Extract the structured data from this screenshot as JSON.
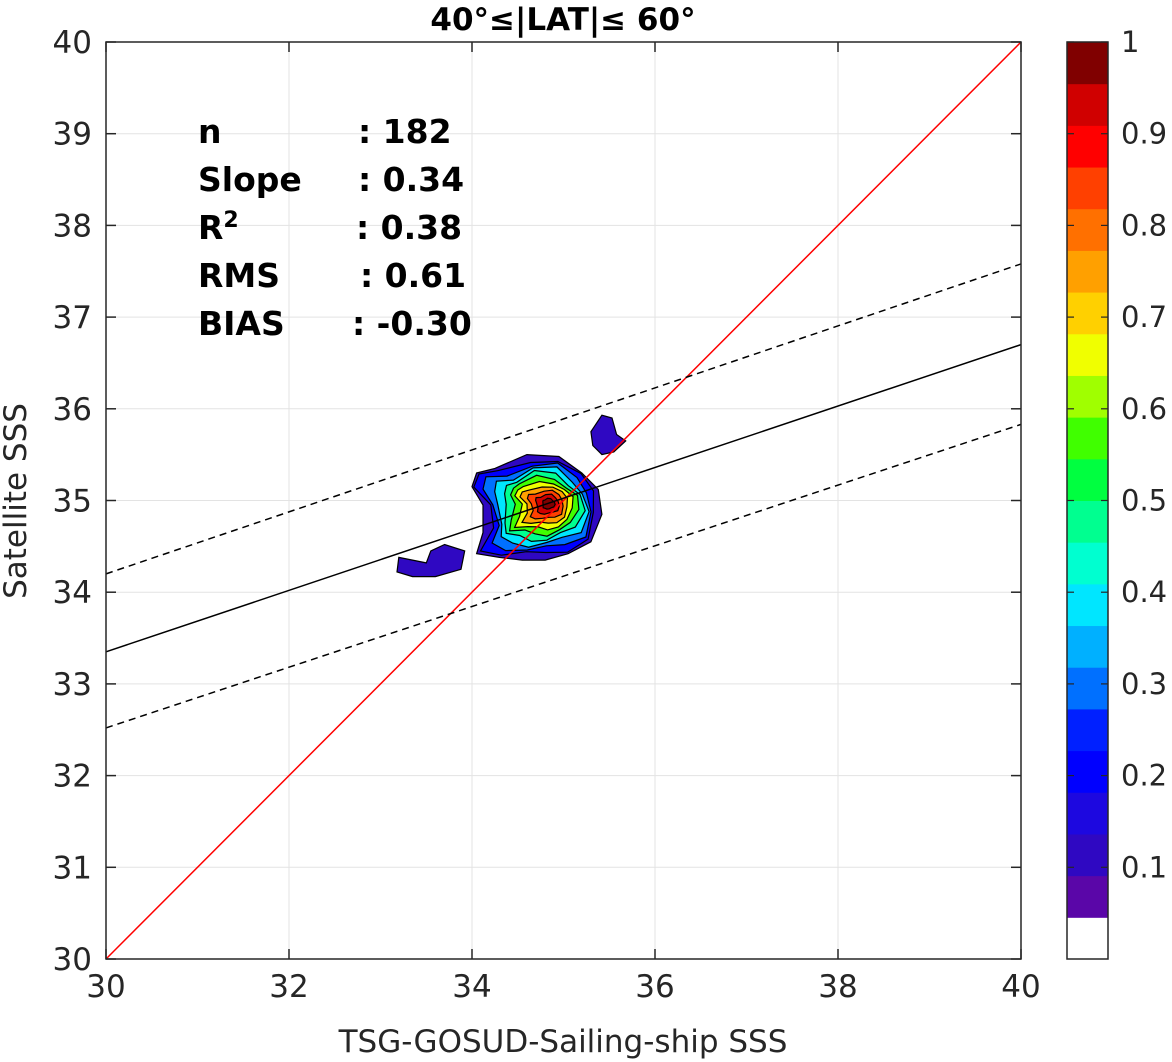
{
  "chart_data": {
    "type": "contour",
    "title": "40°≤|LAT|≤ 60°",
    "xlabel": "TSG-GOSUD-Sailing-ship SSS",
    "ylabel": "Satellite SSS",
    "xlim": [
      30,
      40
    ],
    "ylim": [
      30,
      40
    ],
    "xticks": [
      "30",
      "32",
      "34",
      "36",
      "38",
      "40"
    ],
    "yticks": [
      "30",
      "31",
      "32",
      "33",
      "34",
      "35",
      "36",
      "37",
      "38",
      "39",
      "40"
    ],
    "grid": true,
    "stats": [
      {
        "name": "n",
        "value": ": 182"
      },
      {
        "name": "Slope",
        "value": ": 0.34"
      },
      {
        "name": "R",
        "sup": "2",
        "value": ": 0.38"
      },
      {
        "name": "RMS",
        "value": ": 0.61"
      },
      {
        "name": "BIAS",
        "value": ": -0.30"
      }
    ],
    "lines": {
      "identity": {
        "x": [
          30,
          40
        ],
        "y": [
          30,
          40
        ],
        "color": "#ff0000"
      },
      "regression": {
        "x": [
          30,
          40
        ],
        "y": [
          33.35,
          36.7
        ],
        "color": "#000000"
      },
      "upper_bound": {
        "x": [
          30,
          40
        ],
        "y": [
          34.2,
          37.58
        ],
        "color": "#000000",
        "dash": true
      },
      "lower_bound": {
        "x": [
          30,
          40
        ],
        "y": [
          32.52,
          35.83
        ],
        "color": "#000000",
        "dash": true
      }
    },
    "density_peak": {
      "x": 34.85,
      "y": 34.97
    },
    "contour_levels": [
      0.05,
      0.1,
      0.2,
      0.3,
      0.4,
      0.5,
      0.6,
      0.7,
      0.8,
      0.9
    ],
    "isolated_patches": [
      {
        "points": [
          [
            33.2,
            34.38
          ],
          [
            33.5,
            34.32
          ],
          [
            33.55,
            34.45
          ],
          [
            33.7,
            34.52
          ],
          [
            33.92,
            34.45
          ],
          [
            33.88,
            34.25
          ],
          [
            33.6,
            34.17
          ],
          [
            33.35,
            34.17
          ],
          [
            33.18,
            34.22
          ]
        ]
      },
      {
        "points": [
          [
            35.3,
            35.75
          ],
          [
            35.42,
            35.93
          ],
          [
            35.53,
            35.9
          ],
          [
            35.58,
            35.72
          ],
          [
            35.68,
            35.65
          ],
          [
            35.55,
            35.53
          ],
          [
            35.42,
            35.5
          ],
          [
            35.32,
            35.6
          ]
        ]
      }
    ],
    "colorbar": {
      "range": [
        0,
        1
      ],
      "ticks": [
        "0.1",
        "0.2",
        "0.3",
        "0.4",
        "0.5",
        "0.6",
        "0.7",
        "0.8",
        "0.9",
        "1"
      ],
      "colors": [
        "#ffffff",
        "#5a06a8",
        "#2f08c2",
        "#1d08e0",
        "#0000ff",
        "#0020ff",
        "#0070ff",
        "#00b0ff",
        "#00e6ff",
        "#00ffd0",
        "#00ff90",
        "#00ff40",
        "#40ff00",
        "#a0ff00",
        "#f0ff00",
        "#ffd000",
        "#ffa000",
        "#ff7000",
        "#ff4000",
        "#ff0000",
        "#d00000",
        "#800000"
      ]
    }
  }
}
